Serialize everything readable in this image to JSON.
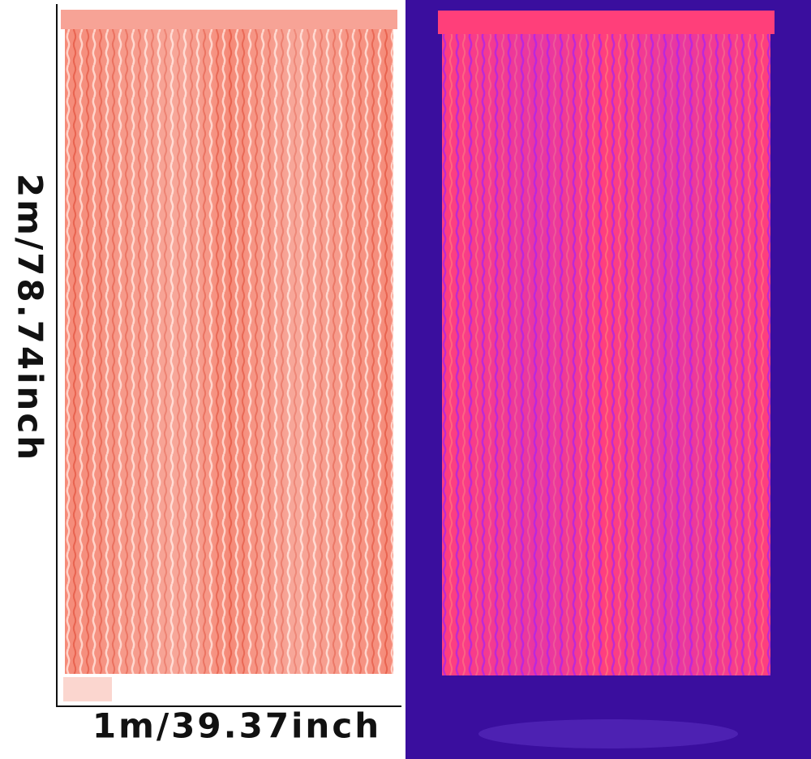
{
  "dimensions": {
    "height_label": "2m/78.74inch",
    "width_label": "1m/39.37inch"
  }
}
